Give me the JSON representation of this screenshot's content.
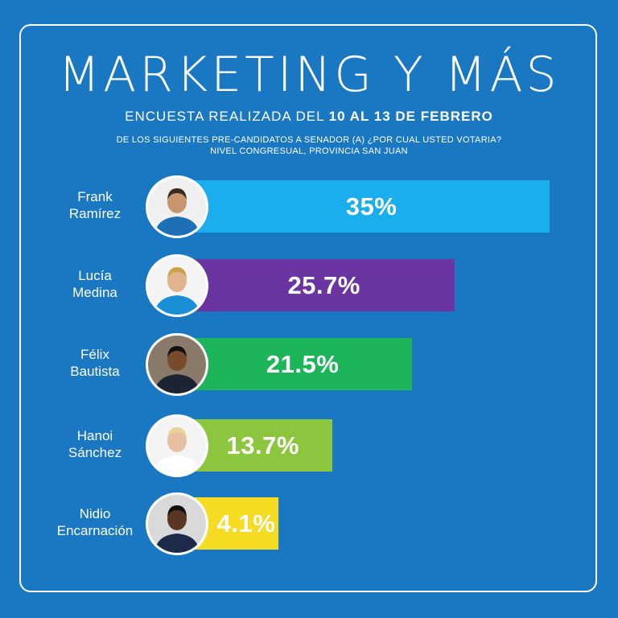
{
  "title": "MARKETING Y MÁS",
  "subtitle_prefix": "ENCUESTA REALIZADA DEL ",
  "subtitle_dates": "10 AL 13 DE FEBRERO",
  "question_line1": "DE LOS SIGUIENTES PRE-CANDIDATOS A SENADOR (A) ¿POR CUAL USTED VOTARIA?",
  "question_line2": "NIVEL CONGRESUAL, PROVINCIA SAN JUAN",
  "chart_data": {
    "type": "bar",
    "orientation": "horizontal",
    "categories": [
      "Frank Ramírez",
      "Lucía Medina",
      "Félix Bautista",
      "Hanoi Sánchez",
      "Nidio Encarnación"
    ],
    "values": [
      35,
      25.7,
      21.5,
      13.7,
      4.1
    ],
    "value_labels": [
      "35%",
      "25.7%",
      "21.5%",
      "13.7%",
      "4.1%"
    ],
    "name_lines": [
      [
        "Frank",
        "Ramírez"
      ],
      [
        "Lucía",
        "Medina"
      ],
      [
        "Félix",
        "Bautista"
      ],
      [
        "Hanoi",
        "Sánchez"
      ],
      [
        "Nidio",
        "Encarnación"
      ]
    ],
    "colors": [
      "#1aaeef",
      "#6a35a0",
      "#1cb55a",
      "#8cc63e",
      "#f5dc22"
    ],
    "avatar_icons": [
      "person-photo-icon",
      "person-photo-icon",
      "person-photo-icon",
      "person-photo-icon",
      "person-photo-icon"
    ],
    "title": "",
    "xlabel": "",
    "ylabel": "",
    "xlim": [
      0,
      35
    ],
    "grid": false,
    "legend": "none"
  }
}
